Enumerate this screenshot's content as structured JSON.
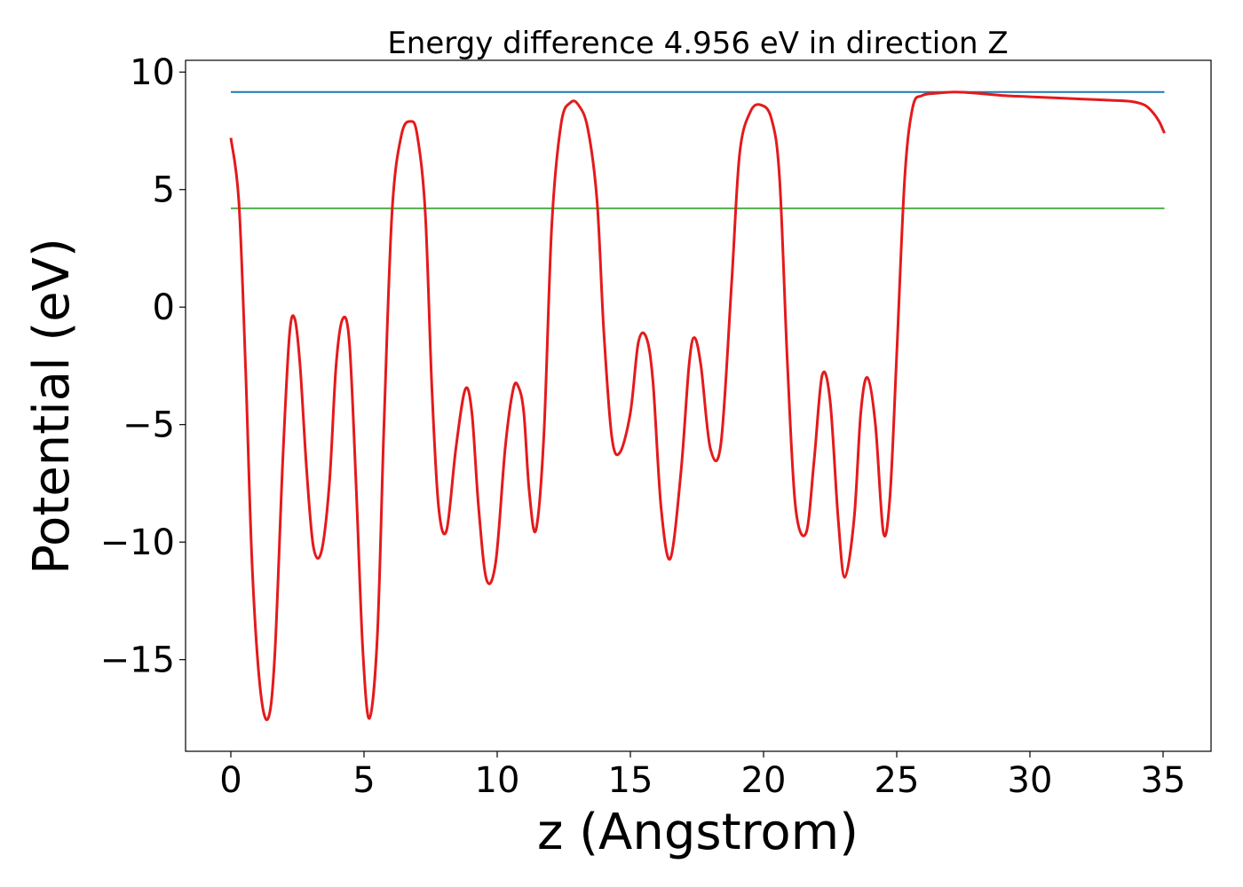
{
  "chart_data": {
    "type": "line",
    "title": "Energy difference 4.956 eV in direction Z",
    "xlabel": "z (Angstrom)",
    "ylabel": "Potential (eV)",
    "xlim": [
      -1.7,
      36.8
    ],
    "ylim": [
      -18.9,
      10.5
    ],
    "xticks": [
      0,
      5,
      10,
      15,
      20,
      25,
      30,
      35
    ],
    "yticks": [
      10,
      5,
      0,
      -5,
      -10,
      -15
    ],
    "xtick_labels": [
      "0",
      "5",
      "10",
      "15",
      "20",
      "25",
      "30",
      "35"
    ],
    "ytick_labels": [
      "10",
      "5",
      "0",
      "−5",
      "−10",
      "−15"
    ],
    "grid": false,
    "legend": null,
    "series": [
      {
        "color": "#e41a1c",
        "x": [
          0.0,
          0.3,
          0.55,
          0.8,
          1.1,
          1.4,
          1.65,
          1.95,
          2.2,
          2.4,
          2.6,
          2.85,
          3.1,
          3.4,
          3.7,
          3.95,
          4.2,
          4.45,
          4.7,
          4.95,
          5.2,
          5.5,
          5.75,
          6.05,
          6.4,
          6.75,
          7.0,
          7.3,
          7.55,
          7.8,
          8.1,
          8.45,
          8.8,
          9.05,
          9.3,
          9.6,
          9.95,
          10.3,
          10.6,
          10.8,
          11.0,
          11.2,
          11.45,
          11.75,
          12.05,
          12.4,
          12.75,
          13.05,
          13.4,
          13.75,
          14.0,
          14.3,
          14.6,
          15.0,
          15.3,
          15.6,
          15.85,
          16.15,
          16.5,
          16.9,
          17.2,
          17.4,
          17.65,
          18.0,
          18.4,
          18.8,
          19.1,
          19.5,
          19.9,
          20.3,
          20.6,
          20.9,
          21.2,
          21.6,
          21.9,
          22.2,
          22.5,
          22.8,
          23.05,
          23.4,
          23.65,
          23.9,
          24.2,
          24.5,
          24.75,
          25.0,
          25.3,
          25.6,
          25.95,
          26.5,
          27.2,
          28.0,
          29.0,
          30.0,
          31.0,
          32.0,
          33.0,
          33.8,
          34.3,
          34.6,
          34.85,
          35.05
        ],
        "y": [
          7.2,
          4.5,
          -2.5,
          -11.0,
          -16.2,
          -17.5,
          -14.8,
          -6.5,
          -1.2,
          -0.5,
          -2.5,
          -7.0,
          -10.2,
          -10.4,
          -7.5,
          -2.5,
          -0.5,
          -1.5,
          -7.5,
          -14.5,
          -17.5,
          -14.0,
          -5.0,
          4.0,
          7.3,
          7.9,
          7.3,
          4.0,
          -3.5,
          -8.5,
          -9.5,
          -6.0,
          -3.5,
          -4.5,
          -8.5,
          -11.6,
          -10.8,
          -6.0,
          -3.5,
          -3.4,
          -4.5,
          -7.8,
          -9.5,
          -5.5,
          3.5,
          7.8,
          8.7,
          8.6,
          7.6,
          4.5,
          -1.0,
          -5.5,
          -6.2,
          -4.5,
          -1.5,
          -1.3,
          -3.2,
          -8.5,
          -10.7,
          -7.0,
          -2.5,
          -1.3,
          -2.5,
          -6.0,
          -5.8,
          1.0,
          6.5,
          8.3,
          8.6,
          8.0,
          5.5,
          -2.5,
          -8.5,
          -9.6,
          -6.5,
          -2.9,
          -4.0,
          -9.0,
          -11.5,
          -9.0,
          -4.5,
          -3.0,
          -5.0,
          -9.6,
          -8.0,
          -2.0,
          5.5,
          8.5,
          9.0,
          9.1,
          9.15,
          9.1,
          9.0,
          8.95,
          8.9,
          8.85,
          8.8,
          8.75,
          8.6,
          8.3,
          7.9,
          7.4
        ]
      },
      {
        "color": "#1f77b4",
        "x": [
          0.0,
          35.05
        ],
        "y": [
          9.15,
          9.15
        ]
      },
      {
        "color": "#4daf4a",
        "x": [
          0.0,
          35.05
        ],
        "y": [
          4.2,
          4.2
        ]
      }
    ]
  }
}
